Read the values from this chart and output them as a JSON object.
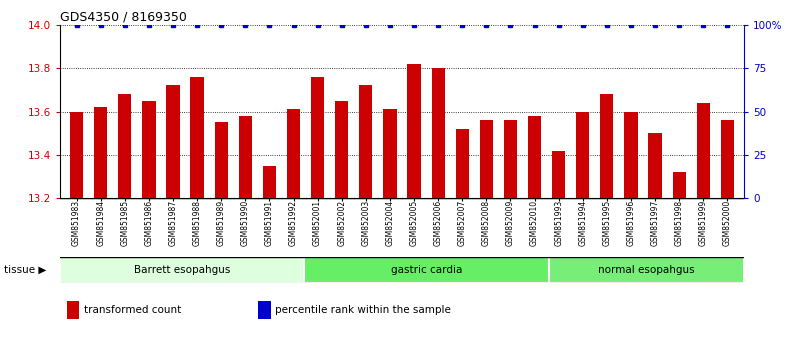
{
  "title": "GDS4350 / 8169350",
  "samples": [
    "GSM851983",
    "GSM851984",
    "GSM851985",
    "GSM851986",
    "GSM851987",
    "GSM851988",
    "GSM851989",
    "GSM851990",
    "GSM851991",
    "GSM851992",
    "GSM852001",
    "GSM852002",
    "GSM852003",
    "GSM852004",
    "GSM852005",
    "GSM852006",
    "GSM852007",
    "GSM852008",
    "GSM852009",
    "GSM852010",
    "GSM851993",
    "GSM851994",
    "GSM851995",
    "GSM851996",
    "GSM851997",
    "GSM851998",
    "GSM851999",
    "GSM852000"
  ],
  "values": [
    13.6,
    13.62,
    13.68,
    13.65,
    13.72,
    13.76,
    13.55,
    13.58,
    13.35,
    13.61,
    13.76,
    13.65,
    13.72,
    13.61,
    13.82,
    13.8,
    13.52,
    13.56,
    13.56,
    13.58,
    13.42,
    13.6,
    13.68,
    13.6,
    13.5,
    13.32,
    13.64,
    13.56
  ],
  "percentile_values": [
    100,
    100,
    100,
    100,
    100,
    100,
    100,
    100,
    100,
    100,
    100,
    100,
    100,
    100,
    100,
    100,
    100,
    100,
    100,
    100,
    100,
    100,
    100,
    100,
    100,
    100,
    100,
    100
  ],
  "groups": [
    {
      "label": "Barrett esopahgus",
      "start": 0,
      "end": 10,
      "color": "#ddffdd"
    },
    {
      "label": "gastric cardia",
      "start": 10,
      "end": 20,
      "color": "#66ee66"
    },
    {
      "label": "normal esopahgus",
      "start": 20,
      "end": 28,
      "color": "#77ee77"
    }
  ],
  "bar_color": "#cc0000",
  "dot_color": "#0000cc",
  "ylim_left": [
    13.2,
    14.0
  ],
  "ylim_right": [
    0,
    100
  ],
  "yticks_left": [
    13.2,
    13.4,
    13.6,
    13.8,
    14.0
  ],
  "yticks_right": [
    0,
    25,
    50,
    75,
    100
  ],
  "ytick_labels_right": [
    "0",
    "25",
    "50",
    "75",
    "100%"
  ],
  "bar_width": 0.55,
  "legend_items": [
    {
      "color": "#cc0000",
      "label": "transformed count"
    },
    {
      "color": "#0000cc",
      "label": "percentile rank within the sample"
    }
  ],
  "tissue_label": "tissue",
  "background_color": "#ffffff",
  "plot_bg_color": "#ffffff",
  "xtick_bg_color": "#dddddd",
  "grid_color": "#000000",
  "grid_linestyle": "dotted"
}
